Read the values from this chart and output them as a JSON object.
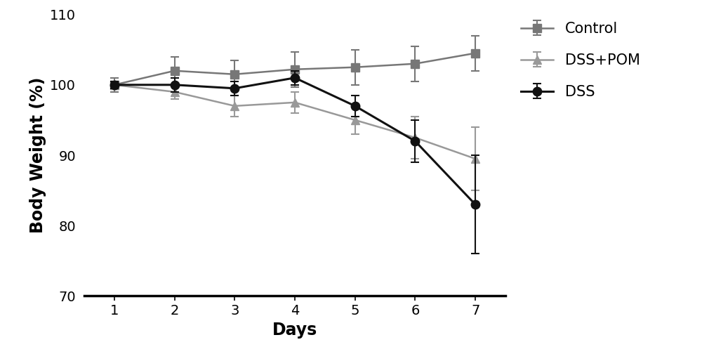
{
  "days": [
    1,
    2,
    3,
    4,
    5,
    6,
    7
  ],
  "dss": {
    "values": [
      100.0,
      100.0,
      99.5,
      101.0,
      97.0,
      92.0,
      83.0
    ],
    "errors": [
      0.5,
      1.0,
      1.0,
      1.0,
      1.5,
      3.0,
      7.0
    ],
    "color": "#111111",
    "marker": "o",
    "label": "DSS",
    "linewidth": 2.2,
    "markersize": 9
  },
  "dss_pom": {
    "values": [
      100.0,
      99.0,
      97.0,
      97.5,
      95.0,
      92.5,
      89.5
    ],
    "errors": [
      0.5,
      1.0,
      1.5,
      1.5,
      2.0,
      3.0,
      4.5
    ],
    "color": "#999999",
    "marker": "^",
    "label": "DSS+POM",
    "linewidth": 1.8,
    "markersize": 9
  },
  "control": {
    "values": [
      100.0,
      102.0,
      101.5,
      102.2,
      102.5,
      103.0,
      104.5
    ],
    "errors": [
      1.0,
      2.0,
      2.0,
      2.5,
      2.5,
      2.5,
      2.5
    ],
    "color": "#777777",
    "marker": "s",
    "label": "Control",
    "linewidth": 1.8,
    "markersize": 9
  },
  "xlabel": "Days",
  "ylabel": "Body Weight (%)",
  "xlim": [
    0.5,
    7.5
  ],
  "ylim": [
    70,
    110
  ],
  "yticks": [
    70,
    80,
    90,
    100,
    110
  ],
  "xticks": [
    1,
    2,
    3,
    4,
    5,
    6,
    7
  ],
  "label_fontsize": 17,
  "tick_fontsize": 14,
  "legend_fontsize": 15,
  "background_color": "#ffffff",
  "capsize": 4,
  "capthick": 1.5,
  "elinewidth": 1.5
}
